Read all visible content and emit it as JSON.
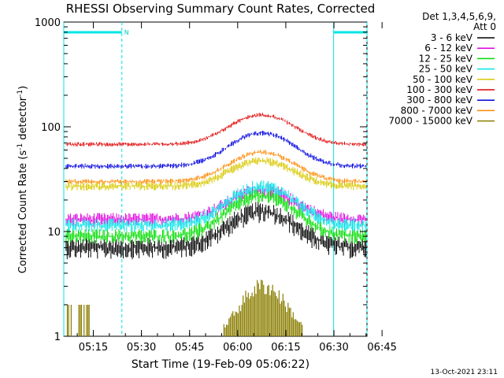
{
  "chart_data": {
    "type": "line",
    "title": "RHESSI Observing Summary Count Rates, Corrected",
    "xlabel": "Start Time (19-Feb-09 05:06:22)",
    "ylabel": "Corrected Count Rate (s⁻¹ detector⁻¹)",
    "ylabel_main": "Corrected Count Rate (s",
    "ylabel_sup1": "-1",
    "ylabel_mid": " detector",
    "ylabel_sup2": "-1",
    "ylabel_end": ")",
    "yscale": "log",
    "ylim": [
      1,
      1000
    ],
    "xlim_minutes": [
      5.8,
      100.3
    ],
    "x_ticks": [
      {
        "label": "05:15",
        "minute": 15
      },
      {
        "label": "05:30",
        "minute": 30
      },
      {
        "label": "05:45",
        "minute": 45
      },
      {
        "label": "06:00",
        "minute": 60
      },
      {
        "label": "06:15",
        "minute": 75
      },
      {
        "label": "06:30",
        "minute": 90
      },
      {
        "label": "06:45",
        "minute": 105
      }
    ],
    "y_ticks": [
      {
        "label": "1",
        "value": 1
      },
      {
        "label": "10",
        "value": 10
      },
      {
        "label": "100",
        "value": 100
      },
      {
        "label": "1000",
        "value": 1000
      }
    ],
    "legend_header": [
      "Det 1,3,4,5,6,9,",
      "Att 0"
    ],
    "legend_placement": "right",
    "footer_date": "13-Oct-2021 23:11",
    "night_marker": "N",
    "night_intervals_minutes": [
      [
        5.8,
        23.9
      ],
      [
        89.9,
        100.3
      ]
    ],
    "bg_noise_minutes": [
      [
        6,
        14
      ]
    ],
    "series": [
      {
        "name": "3 - 6 keV",
        "color": "#000000",
        "base": 7.0,
        "peak": 15.5,
        "peak_min": 67.5,
        "width": 9,
        "noise": 0.25
      },
      {
        "name": "6 - 12 keV",
        "color": "#e000e0",
        "base": 13.0,
        "peak": 25.0,
        "peak_min": 67.5,
        "width": 9,
        "noise": 0.16
      },
      {
        "name": "12 - 25 keV",
        "color": "#00dd00",
        "base": 9.0,
        "peak": 22.0,
        "peak_min": 67.5,
        "width": 9,
        "noise": 0.18
      },
      {
        "name": "25 - 50 keV",
        "color": "#00e5e5",
        "base": 11.5,
        "peak": 27.0,
        "peak_min": 67.5,
        "width": 9,
        "noise": 0.16
      },
      {
        "name": "50 - 100 keV",
        "color": "#d8c800",
        "base": 27.0,
        "peak": 47.0,
        "peak_min": 67.5,
        "width": 9,
        "noise": 0.1
      },
      {
        "name": "100 - 300 keV",
        "color": "#e00000",
        "base": 68.0,
        "peak": 130.0,
        "peak_min": 67.5,
        "width": 9,
        "noise": 0.05
      },
      {
        "name": "300 - 800 keV",
        "color": "#0000e0",
        "base": 42.0,
        "peak": 87.0,
        "peak_min": 67.5,
        "width": 9,
        "noise": 0.06
      },
      {
        "name": "800 - 7000 keV",
        "color": "#ff8800",
        "base": 30.0,
        "peak": 57.0,
        "peak_min": 67.5,
        "width": 9,
        "noise": 0.06
      },
      {
        "name": "7000 - 15000 keV",
        "color": "#8a7d00",
        "base": 1.0,
        "peak": 3.4,
        "peak_min": 68,
        "width": 6,
        "noise": 0.2
      }
    ]
  }
}
